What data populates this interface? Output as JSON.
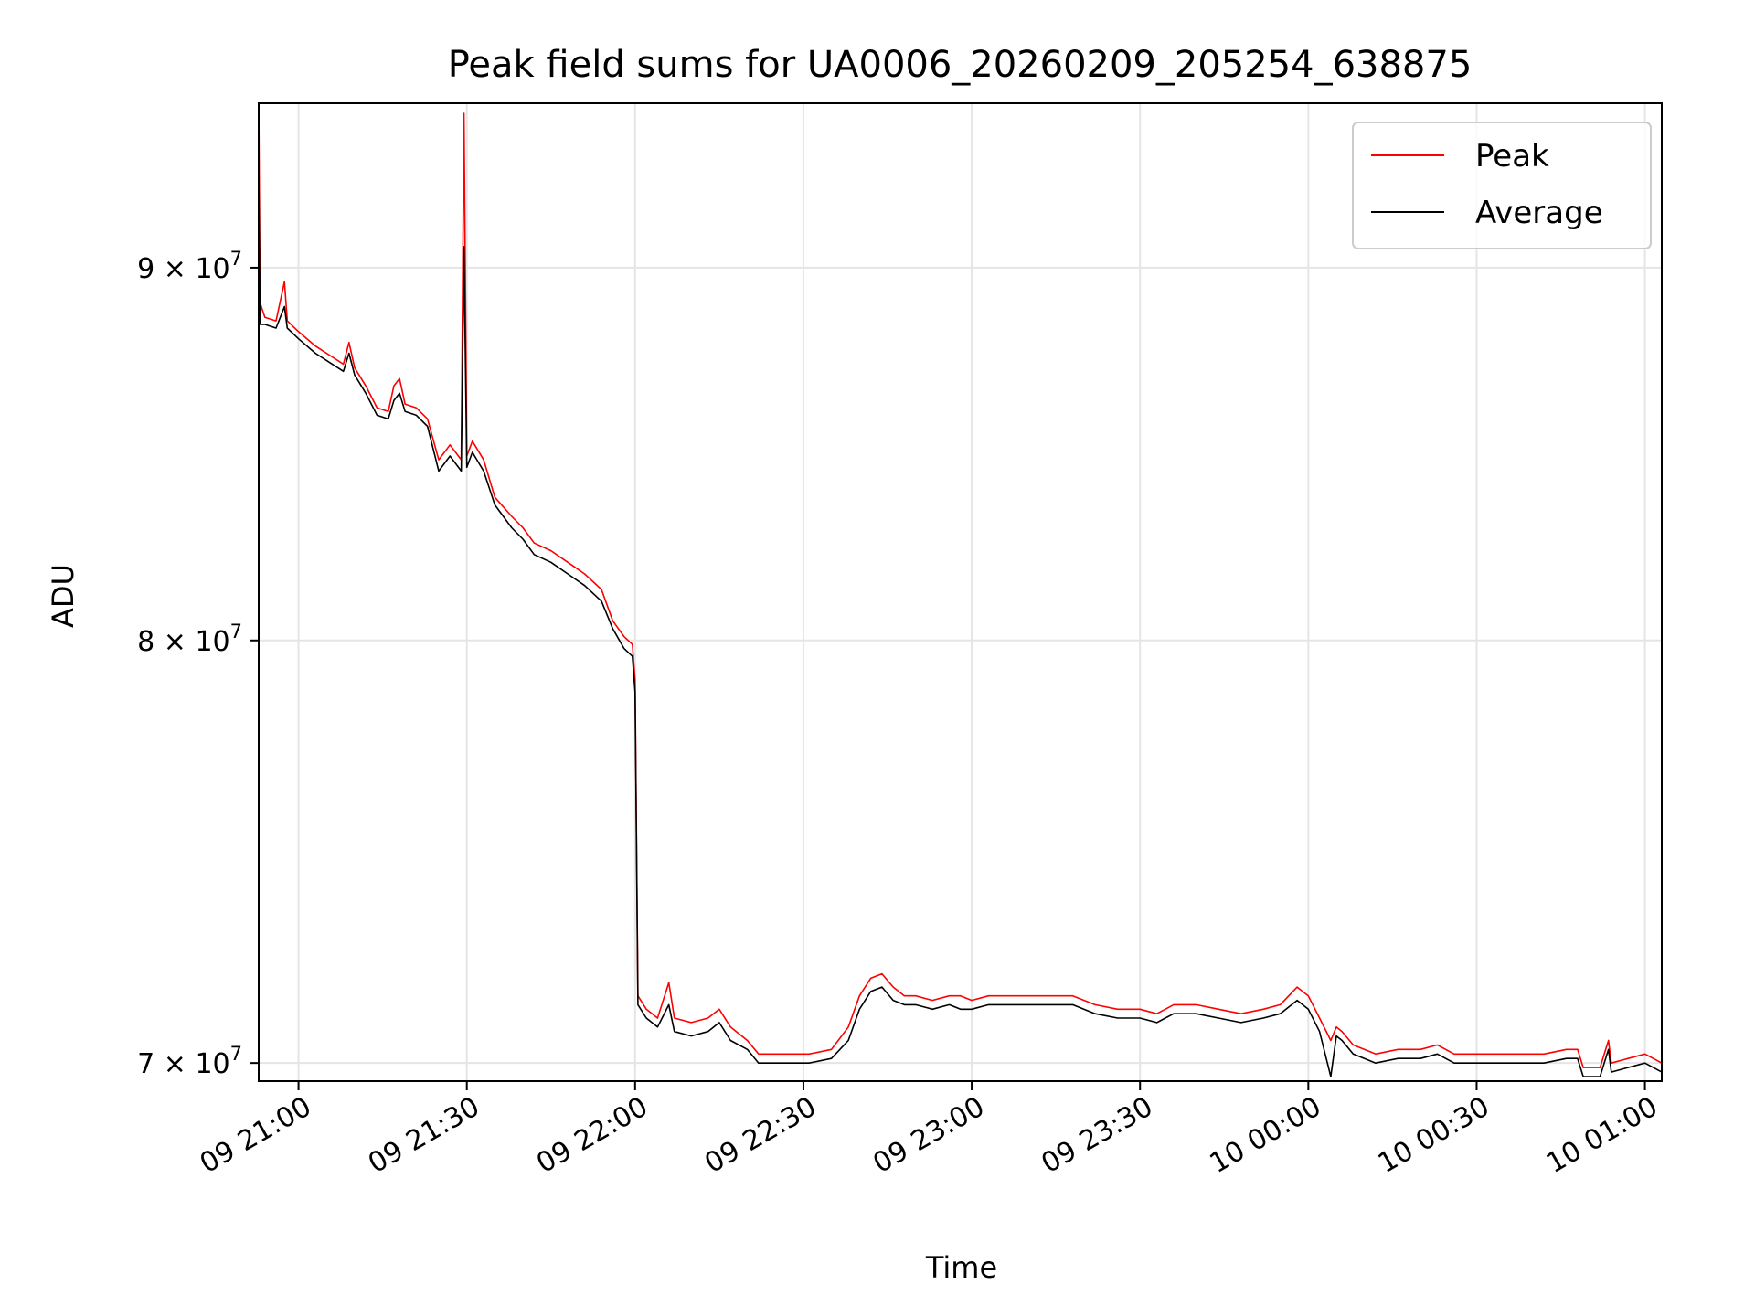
{
  "chart_data": {
    "type": "line",
    "title": "Peak field sums for UA0006_20260209_205254_638875",
    "xlabel": "Time",
    "ylabel": "ADU",
    "y_scale": "log",
    "grid": true,
    "legend_position": "top-right",
    "xlim": [
      "2026-02-09 20:52:54",
      "2026-02-10 01:03:00"
    ],
    "ylim": [
      69600000,
      94800000
    ],
    "x_ticks": [
      {
        "t": "2026-02-09 21:00",
        "label": "09 21:00"
      },
      {
        "t": "2026-02-09 21:30",
        "label": "09 21:30"
      },
      {
        "t": "2026-02-09 22:00",
        "label": "09 22:00"
      },
      {
        "t": "2026-02-09 22:30",
        "label": "09 22:30"
      },
      {
        "t": "2026-02-09 23:00",
        "label": "09 23:00"
      },
      {
        "t": "2026-02-09 23:30",
        "label": "09 23:30"
      },
      {
        "t": "2026-02-10 00:00",
        "label": "10 00:00"
      },
      {
        "t": "2026-02-10 00:30",
        "label": "10 00:30"
      },
      {
        "t": "2026-02-10 01:00",
        "label": "10 01:00"
      }
    ],
    "y_ticks": [
      {
        "value": 70000000,
        "mantissa": "7",
        "exponent": "7"
      },
      {
        "value": 80000000,
        "mantissa": "8",
        "exponent": "7"
      },
      {
        "value": 90000000,
        "mantissa": "9",
        "exponent": "7"
      }
    ],
    "series": [
      {
        "name": "Peak",
        "color": "#ff0000",
        "points": [
          [
            "2026-02-09 20:52:54",
            94800000
          ],
          [
            "2026-02-09 20:53:10",
            89000000
          ],
          [
            "2026-02-09 20:54:00",
            88600000
          ],
          [
            "2026-02-09 20:56:00",
            88500000
          ],
          [
            "2026-02-09 20:57:30",
            89600000
          ],
          [
            "2026-02-09 20:58:00",
            88500000
          ],
          [
            "2026-02-09 21:00:00",
            88200000
          ],
          [
            "2026-02-09 21:03:00",
            87800000
          ],
          [
            "2026-02-09 21:06:00",
            87500000
          ],
          [
            "2026-02-09 21:08:00",
            87300000
          ],
          [
            "2026-02-09 21:09:00",
            87900000
          ],
          [
            "2026-02-09 21:10:00",
            87200000
          ],
          [
            "2026-02-09 21:12:00",
            86700000
          ],
          [
            "2026-02-09 21:14:00",
            86100000
          ],
          [
            "2026-02-09 21:16:00",
            86000000
          ],
          [
            "2026-02-09 21:17:00",
            86700000
          ],
          [
            "2026-02-09 21:18:00",
            86900000
          ],
          [
            "2026-02-09 21:19:00",
            86200000
          ],
          [
            "2026-02-09 21:21:00",
            86100000
          ],
          [
            "2026-02-09 21:23:00",
            85800000
          ],
          [
            "2026-02-09 21:25:00",
            84700000
          ],
          [
            "2026-02-09 21:27:00",
            85100000
          ],
          [
            "2026-02-09 21:29:00",
            84700000
          ],
          [
            "2026-02-09 21:29:30",
            94500000
          ],
          [
            "2026-02-09 21:30:00",
            84800000
          ],
          [
            "2026-02-09 21:31:00",
            85200000
          ],
          [
            "2026-02-09 21:33:00",
            84700000
          ],
          [
            "2026-02-09 21:35:00",
            83700000
          ],
          [
            "2026-02-09 21:38:00",
            83200000
          ],
          [
            "2026-02-09 21:40:00",
            82900000
          ],
          [
            "2026-02-09 21:42:00",
            82500000
          ],
          [
            "2026-02-09 21:45:00",
            82300000
          ],
          [
            "2026-02-09 21:48:00",
            82000000
          ],
          [
            "2026-02-09 21:51:00",
            81700000
          ],
          [
            "2026-02-09 21:54:00",
            81300000
          ],
          [
            "2026-02-09 21:56:00",
            80500000
          ],
          [
            "2026-02-09 21:58:00",
            80100000
          ],
          [
            "2026-02-09 21:59:30",
            79900000
          ],
          [
            "2026-02-09 22:00:00",
            79000000
          ],
          [
            "2026-02-09 22:00:30",
            71500000
          ],
          [
            "2026-02-09 22:02:00",
            71200000
          ],
          [
            "2026-02-09 22:04:00",
            71000000
          ],
          [
            "2026-02-09 22:06:00",
            71800000
          ],
          [
            "2026-02-09 22:07:00",
            71000000
          ],
          [
            "2026-02-09 22:10:00",
            70900000
          ],
          [
            "2026-02-09 22:13:00",
            71000000
          ],
          [
            "2026-02-09 22:15:00",
            71200000
          ],
          [
            "2026-02-09 22:17:00",
            70800000
          ],
          [
            "2026-02-09 22:20:00",
            70500000
          ],
          [
            "2026-02-09 22:22:00",
            70200000
          ],
          [
            "2026-02-09 22:25:00",
            70200000
          ],
          [
            "2026-02-09 22:28:00",
            70200000
          ],
          [
            "2026-02-09 22:31:00",
            70200000
          ],
          [
            "2026-02-09 22:35:00",
            70300000
          ],
          [
            "2026-02-09 22:38:00",
            70800000
          ],
          [
            "2026-02-09 22:40:00",
            71500000
          ],
          [
            "2026-02-09 22:42:00",
            71900000
          ],
          [
            "2026-02-09 22:44:00",
            72000000
          ],
          [
            "2026-02-09 22:46:00",
            71700000
          ],
          [
            "2026-02-09 22:48:00",
            71500000
          ],
          [
            "2026-02-09 22:50:00",
            71500000
          ],
          [
            "2026-02-09 22:53:00",
            71400000
          ],
          [
            "2026-02-09 22:56:00",
            71500000
          ],
          [
            "2026-02-09 22:58:00",
            71500000
          ],
          [
            "2026-02-09 23:00:00",
            71400000
          ],
          [
            "2026-02-09 23:03:00",
            71500000
          ],
          [
            "2026-02-09 23:06:00",
            71500000
          ],
          [
            "2026-02-09 23:10:00",
            71500000
          ],
          [
            "2026-02-09 23:14:00",
            71500000
          ],
          [
            "2026-02-09 23:18:00",
            71500000
          ],
          [
            "2026-02-09 23:22:00",
            71300000
          ],
          [
            "2026-02-09 23:26:00",
            71200000
          ],
          [
            "2026-02-09 23:30:00",
            71200000
          ],
          [
            "2026-02-09 23:33:00",
            71100000
          ],
          [
            "2026-02-09 23:36:00",
            71300000
          ],
          [
            "2026-02-09 23:40:00",
            71300000
          ],
          [
            "2026-02-09 23:44:00",
            71200000
          ],
          [
            "2026-02-09 23:48:00",
            71100000
          ],
          [
            "2026-02-09 23:52:00",
            71200000
          ],
          [
            "2026-02-09 23:55:00",
            71300000
          ],
          [
            "2026-02-09 23:58:00",
            71700000
          ],
          [
            "2026-02-10 00:00:00",
            71500000
          ],
          [
            "2026-02-10 00:02:00",
            71000000
          ],
          [
            "2026-02-10 00:04:00",
            70500000
          ],
          [
            "2026-02-10 00:05:00",
            70800000
          ],
          [
            "2026-02-10 00:06:00",
            70700000
          ],
          [
            "2026-02-10 00:08:00",
            70400000
          ],
          [
            "2026-02-10 00:12:00",
            70200000
          ],
          [
            "2026-02-10 00:16:00",
            70300000
          ],
          [
            "2026-02-10 00:20:00",
            70300000
          ],
          [
            "2026-02-10 00:23:00",
            70400000
          ],
          [
            "2026-02-10 00:26:00",
            70200000
          ],
          [
            "2026-02-10 00:30:00",
            70200000
          ],
          [
            "2026-02-10 00:34:00",
            70200000
          ],
          [
            "2026-02-10 00:38:00",
            70200000
          ],
          [
            "2026-02-10 00:42:00",
            70200000
          ],
          [
            "2026-02-10 00:46:00",
            70300000
          ],
          [
            "2026-02-10 00:48:00",
            70300000
          ],
          [
            "2026-02-10 00:49:00",
            69900000
          ],
          [
            "2026-02-10 00:52:00",
            69900000
          ],
          [
            "2026-02-10 00:53:30",
            70500000
          ],
          [
            "2026-02-10 00:54:00",
            70000000
          ],
          [
            "2026-02-10 00:57:00",
            70100000
          ],
          [
            "2026-02-10 01:00:00",
            70200000
          ],
          [
            "2026-02-10 01:03:00",
            70000000
          ]
        ]
      },
      {
        "name": "Average",
        "color": "#000000",
        "points": [
          [
            "2026-02-09 20:52:54",
            92800000
          ],
          [
            "2026-02-09 20:53:10",
            88400000
          ],
          [
            "2026-02-09 20:54:00",
            88400000
          ],
          [
            "2026-02-09 20:56:00",
            88300000
          ],
          [
            "2026-02-09 20:57:30",
            88900000
          ],
          [
            "2026-02-09 20:58:00",
            88300000
          ],
          [
            "2026-02-09 21:00:00",
            88000000
          ],
          [
            "2026-02-09 21:03:00",
            87600000
          ],
          [
            "2026-02-09 21:06:00",
            87300000
          ],
          [
            "2026-02-09 21:08:00",
            87100000
          ],
          [
            "2026-02-09 21:09:00",
            87600000
          ],
          [
            "2026-02-09 21:10:00",
            87000000
          ],
          [
            "2026-02-09 21:12:00",
            86500000
          ],
          [
            "2026-02-09 21:14:00",
            85900000
          ],
          [
            "2026-02-09 21:16:00",
            85800000
          ],
          [
            "2026-02-09 21:17:00",
            86300000
          ],
          [
            "2026-02-09 21:18:00",
            86500000
          ],
          [
            "2026-02-09 21:19:00",
            86000000
          ],
          [
            "2026-02-09 21:21:00",
            85900000
          ],
          [
            "2026-02-09 21:23:00",
            85600000
          ],
          [
            "2026-02-09 21:25:00",
            84400000
          ],
          [
            "2026-02-09 21:27:00",
            84800000
          ],
          [
            "2026-02-09 21:29:00",
            84400000
          ],
          [
            "2026-02-09 21:29:30",
            90600000
          ],
          [
            "2026-02-09 21:30:00",
            84500000
          ],
          [
            "2026-02-09 21:31:00",
            84900000
          ],
          [
            "2026-02-09 21:33:00",
            84400000
          ],
          [
            "2026-02-09 21:35:00",
            83500000
          ],
          [
            "2026-02-09 21:38:00",
            82900000
          ],
          [
            "2026-02-09 21:40:00",
            82600000
          ],
          [
            "2026-02-09 21:42:00",
            82200000
          ],
          [
            "2026-02-09 21:45:00",
            82000000
          ],
          [
            "2026-02-09 21:48:00",
            81700000
          ],
          [
            "2026-02-09 21:51:00",
            81400000
          ],
          [
            "2026-02-09 21:54:00",
            81000000
          ],
          [
            "2026-02-09 21:56:00",
            80300000
          ],
          [
            "2026-02-09 21:58:00",
            79800000
          ],
          [
            "2026-02-09 21:59:30",
            79600000
          ],
          [
            "2026-02-09 22:00:00",
            78700000
          ],
          [
            "2026-02-09 22:00:30",
            71300000
          ],
          [
            "2026-02-09 22:02:00",
            71000000
          ],
          [
            "2026-02-09 22:04:00",
            70800000
          ],
          [
            "2026-02-09 22:06:00",
            71300000
          ],
          [
            "2026-02-09 22:07:00",
            70700000
          ],
          [
            "2026-02-09 22:10:00",
            70600000
          ],
          [
            "2026-02-09 22:13:00",
            70700000
          ],
          [
            "2026-02-09 22:15:00",
            70900000
          ],
          [
            "2026-02-09 22:17:00",
            70500000
          ],
          [
            "2026-02-09 22:20:00",
            70300000
          ],
          [
            "2026-02-09 22:22:00",
            70000000
          ],
          [
            "2026-02-09 22:25:00",
            70000000
          ],
          [
            "2026-02-09 22:28:00",
            70000000
          ],
          [
            "2026-02-09 22:31:00",
            70000000
          ],
          [
            "2026-02-09 22:35:00",
            70100000
          ],
          [
            "2026-02-09 22:38:00",
            70500000
          ],
          [
            "2026-02-09 22:40:00",
            71200000
          ],
          [
            "2026-02-09 22:42:00",
            71600000
          ],
          [
            "2026-02-09 22:44:00",
            71700000
          ],
          [
            "2026-02-09 22:46:00",
            71400000
          ],
          [
            "2026-02-09 22:48:00",
            71300000
          ],
          [
            "2026-02-09 22:50:00",
            71300000
          ],
          [
            "2026-02-09 22:53:00",
            71200000
          ],
          [
            "2026-02-09 22:56:00",
            71300000
          ],
          [
            "2026-02-09 22:58:00",
            71200000
          ],
          [
            "2026-02-09 23:00:00",
            71200000
          ],
          [
            "2026-02-09 23:03:00",
            71300000
          ],
          [
            "2026-02-09 23:06:00",
            71300000
          ],
          [
            "2026-02-09 23:10:00",
            71300000
          ],
          [
            "2026-02-09 23:14:00",
            71300000
          ],
          [
            "2026-02-09 23:18:00",
            71300000
          ],
          [
            "2026-02-09 23:22:00",
            71100000
          ],
          [
            "2026-02-09 23:26:00",
            71000000
          ],
          [
            "2026-02-09 23:30:00",
            71000000
          ],
          [
            "2026-02-09 23:33:00",
            70900000
          ],
          [
            "2026-02-09 23:36:00",
            71100000
          ],
          [
            "2026-02-09 23:40:00",
            71100000
          ],
          [
            "2026-02-09 23:44:00",
            71000000
          ],
          [
            "2026-02-09 23:48:00",
            70900000
          ],
          [
            "2026-02-09 23:52:00",
            71000000
          ],
          [
            "2026-02-09 23:55:00",
            71100000
          ],
          [
            "2026-02-09 23:58:00",
            71400000
          ],
          [
            "2026-02-10 00:00:00",
            71200000
          ],
          [
            "2026-02-10 00:02:00",
            70700000
          ],
          [
            "2026-02-10 00:04:00",
            69700000
          ],
          [
            "2026-02-10 00:05:00",
            70600000
          ],
          [
            "2026-02-10 00:06:00",
            70500000
          ],
          [
            "2026-02-10 00:08:00",
            70200000
          ],
          [
            "2026-02-10 00:12:00",
            70000000
          ],
          [
            "2026-02-10 00:16:00",
            70100000
          ],
          [
            "2026-02-10 00:20:00",
            70100000
          ],
          [
            "2026-02-10 00:23:00",
            70200000
          ],
          [
            "2026-02-10 00:26:00",
            70000000
          ],
          [
            "2026-02-10 00:30:00",
            70000000
          ],
          [
            "2026-02-10 00:34:00",
            70000000
          ],
          [
            "2026-02-10 00:38:00",
            70000000
          ],
          [
            "2026-02-10 00:42:00",
            70000000
          ],
          [
            "2026-02-10 00:46:00",
            70100000
          ],
          [
            "2026-02-10 00:48:00",
            70100000
          ],
          [
            "2026-02-10 00:49:00",
            69700000
          ],
          [
            "2026-02-10 00:52:00",
            69700000
          ],
          [
            "2026-02-10 00:53:30",
            70300000
          ],
          [
            "2026-02-10 00:54:00",
            69800000
          ],
          [
            "2026-02-10 00:57:00",
            69900000
          ],
          [
            "2026-02-10 01:00:00",
            70000000
          ],
          [
            "2026-02-10 01:03:00",
            69800000
          ]
        ]
      }
    ]
  }
}
